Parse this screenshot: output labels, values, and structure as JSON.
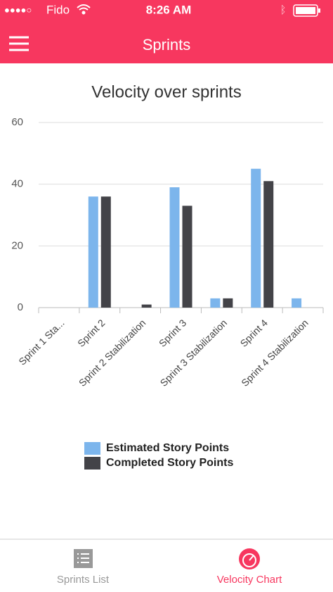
{
  "status_bar": {
    "carrier": "Fido",
    "time": "8:26 AM"
  },
  "nav": {
    "title": "Sprints"
  },
  "chart_data": {
    "type": "bar",
    "title": "Velocity over sprints",
    "categories": [
      "Sprint 1 Sta...",
      "Sprint 2",
      "Sprint 2 Stabilization",
      "Sprint 3",
      "Sprint 3 Stabilization",
      "Sprint 4",
      "Sprint 4 Stabilization"
    ],
    "series": [
      {
        "name": "Estimated Story Points",
        "color": "#7cb5ec",
        "values": [
          0,
          36,
          0,
          39,
          3,
          45,
          3
        ]
      },
      {
        "name": "Completed Story Points",
        "color": "#434348",
        "values": [
          0,
          36,
          1,
          33,
          3,
          41,
          0
        ]
      }
    ],
    "ylim": [
      0,
      60
    ],
    "yticks": [
      0,
      20,
      40,
      60
    ],
    "grid": true,
    "legend": "bottom"
  },
  "tab_bar": {
    "tabs": [
      {
        "label": "Sprints List",
        "selected": false
      },
      {
        "label": "Velocity Chart",
        "selected": true
      }
    ]
  }
}
